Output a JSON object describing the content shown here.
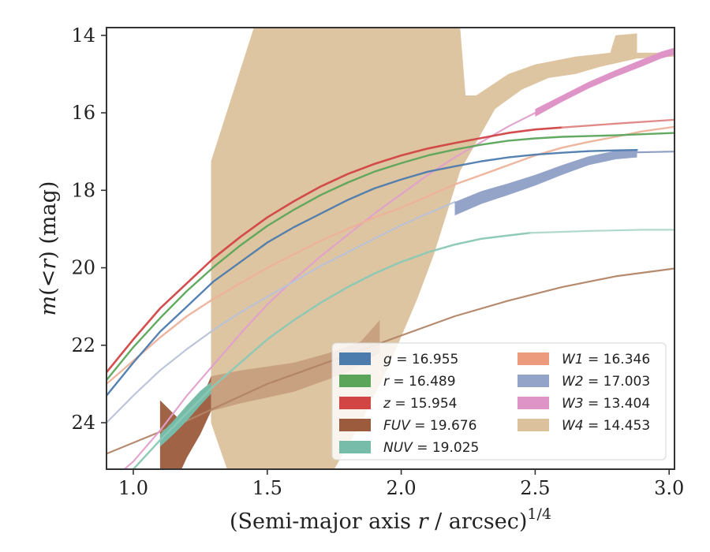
{
  "chart_data": {
    "type": "line",
    "title": "",
    "xlabel": "(Semi-major axis r / arcsec)^1/4",
    "xlabel_parts": {
      "prefix": "(Semi-major axis ",
      "var": "r",
      "suffix": " / arcsec)",
      "exponent": "1/4"
    },
    "ylabel": "m(< r) (mag)",
    "ylabel_parts": {
      "var": "m",
      "open": "(<",
      "var2": "r",
      "close": ") (mag)"
    },
    "xlim": [
      0.9,
      3.02
    ],
    "ylim": [
      25.2,
      13.8
    ],
    "y_inverted": true,
    "grid": false,
    "legend_placement": "lower-right",
    "xticks": [
      1.0,
      1.5,
      2.0,
      2.5,
      3.0
    ],
    "xtick_labels": [
      "1.0",
      "1.5",
      "2.0",
      "2.5",
      "3.0"
    ],
    "yticks": [
      14,
      16,
      18,
      20,
      22,
      24
    ],
    "ytick_labels": [
      "14",
      "16",
      "18",
      "20",
      "22",
      "24"
    ],
    "legend": [
      {
        "label": "g = 16.955",
        "var": "g",
        "value": "16.955",
        "color": "#4c7bae"
      },
      {
        "label": "r = 16.489",
        "var": "r",
        "value": "16.489",
        "color": "#5aa55a"
      },
      {
        "label": "z = 15.954",
        "var": "z",
        "value": "15.954",
        "color": "#d14545"
      },
      {
        "label": "FUV = 19.676",
        "var": "FUV",
        "value": "19.676",
        "color": "#9c5b3c"
      },
      {
        "label": "NUV = 19.025",
        "var": "NUV",
        "value": "19.025",
        "color": "#76bca9"
      },
      {
        "label": "W1 = 16.346",
        "var": "W1",
        "value": "16.346",
        "color": "#ec9c7c"
      },
      {
        "label": "W2 = 17.003",
        "var": "W2",
        "value": "17.003",
        "color": "#94a4c8"
      },
      {
        "label": "W3 = 13.404",
        "var": "W3",
        "value": "13.404",
        "color": "#df94c8"
      },
      {
        "label": "W4 = 14.453",
        "var": "W4",
        "value": "14.453",
        "color": "#dcc29c"
      }
    ],
    "series": [
      {
        "name": "W4",
        "kind": "band",
        "color": "#dcc29c",
        "opacity": 0.95,
        "upper": [
          [
            1.29,
            17.25
          ],
          [
            1.45,
            13.8
          ],
          [
            2.22,
            13.8
          ],
          [
            2.24,
            15.55
          ],
          [
            2.28,
            15.55
          ],
          [
            2.4,
            15.0
          ],
          [
            2.5,
            14.75
          ],
          [
            2.65,
            14.55
          ],
          [
            2.78,
            14.45
          ],
          [
            2.8,
            14.0
          ],
          [
            2.88,
            13.95
          ],
          [
            2.88,
            14.45
          ],
          [
            3.02,
            14.45
          ]
        ],
        "lower": [
          [
            3.02,
            14.55
          ],
          [
            2.88,
            14.6
          ],
          [
            2.75,
            14.8
          ],
          [
            2.65,
            15.0
          ],
          [
            2.55,
            15.1
          ],
          [
            2.45,
            15.4
          ],
          [
            2.35,
            15.9
          ],
          [
            2.22,
            17.5
          ],
          [
            2.12,
            19.7
          ],
          [
            2.06,
            20.8
          ],
          [
            1.95,
            22.6
          ],
          [
            1.85,
            24.0
          ],
          [
            1.75,
            25.2
          ],
          [
            1.35,
            25.2
          ],
          [
            1.3,
            24.2
          ],
          [
            1.29,
            24.0
          ]
        ]
      },
      {
        "name": "FUV",
        "kind": "band",
        "color": "#9c5b3c",
        "opacity": 0.95,
        "upper": [
          [
            1.1,
            23.42
          ],
          [
            1.17,
            23.9
          ],
          [
            1.22,
            23.6
          ],
          [
            1.26,
            23.3
          ],
          [
            1.29,
            22.8
          ],
          [
            1.29,
            23.7
          ]
        ],
        "lower": [
          [
            1.29,
            23.7
          ],
          [
            1.25,
            24.3
          ],
          [
            1.2,
            24.9
          ],
          [
            1.18,
            25.2
          ],
          [
            1.1,
            25.2
          ]
        ]
      },
      {
        "name": "FUV-extension",
        "kind": "band",
        "color": "#9c5b3c",
        "opacity": 0.32,
        "upper": [
          [
            1.29,
            22.8
          ],
          [
            1.4,
            22.65
          ],
          [
            1.6,
            22.45
          ],
          [
            1.73,
            22.2
          ],
          [
            1.85,
            21.9
          ],
          [
            1.92,
            21.35
          ],
          [
            1.92,
            22.2
          ]
        ],
        "lower": [
          [
            1.92,
            22.2
          ],
          [
            1.8,
            22.7
          ],
          [
            1.6,
            23.2
          ],
          [
            1.4,
            23.5
          ],
          [
            1.29,
            23.7
          ]
        ]
      },
      {
        "name": "FUV-line",
        "kind": "line",
        "color": "#b28466",
        "width": 2.2,
        "opacity": 0.95,
        "points": [
          [
            0.9,
            24.8
          ],
          [
            1.2,
            23.95
          ],
          [
            1.5,
            23.0
          ],
          [
            1.8,
            22.25
          ],
          [
            2.0,
            21.75
          ],
          [
            2.2,
            21.25
          ],
          [
            2.4,
            20.85
          ],
          [
            2.6,
            20.5
          ],
          [
            2.8,
            20.22
          ],
          [
            3.02,
            20.02
          ]
        ]
      },
      {
        "name": "W3-thin",
        "kind": "line",
        "color": "#e0a0cc",
        "width": 2.2,
        "opacity": 0.95,
        "points": [
          [
            0.9,
            25.6
          ],
          [
            1.0,
            25.0
          ],
          [
            1.1,
            24.2
          ],
          [
            1.2,
            23.3
          ],
          [
            1.3,
            22.5
          ],
          [
            1.4,
            21.7
          ],
          [
            1.5,
            20.95
          ],
          [
            1.6,
            20.3
          ],
          [
            1.7,
            19.7
          ],
          [
            1.8,
            19.15
          ],
          [
            1.9,
            18.6
          ],
          [
            2.0,
            18.1
          ],
          [
            2.1,
            17.6
          ],
          [
            2.2,
            17.15
          ],
          [
            2.3,
            16.75
          ],
          [
            2.4,
            16.35
          ],
          [
            2.5,
            16.0
          ]
        ]
      },
      {
        "name": "W3-band",
        "kind": "band",
        "color": "#df94c8",
        "opacity": 1.0,
        "upper": [
          [
            2.5,
            15.9
          ],
          [
            2.6,
            15.55
          ],
          [
            2.7,
            15.2
          ],
          [
            2.8,
            14.9
          ],
          [
            2.9,
            14.62
          ],
          [
            2.97,
            14.42
          ],
          [
            3.02,
            14.32
          ]
        ],
        "lower": [
          [
            3.02,
            14.5
          ],
          [
            2.97,
            14.6
          ],
          [
            2.9,
            14.8
          ],
          [
            2.8,
            15.07
          ],
          [
            2.7,
            15.37
          ],
          [
            2.6,
            15.72
          ],
          [
            2.5,
            16.1
          ]
        ]
      },
      {
        "name": "NUV",
        "kind": "band",
        "color": "#76bca9",
        "opacity": 1.0,
        "upper": [
          [
            1.1,
            24.3
          ],
          [
            1.15,
            23.95
          ],
          [
            1.2,
            23.55
          ],
          [
            1.25,
            23.18
          ],
          [
            1.29,
            22.95
          ]
        ],
        "lower": [
          [
            1.29,
            23.25
          ],
          [
            1.25,
            23.55
          ],
          [
            1.2,
            23.95
          ],
          [
            1.15,
            24.3
          ],
          [
            1.1,
            24.62
          ]
        ]
      },
      {
        "name": "NUV-line",
        "kind": "line",
        "color": "#8ac8b5",
        "width": 2.5,
        "opacity": 0.95,
        "points": [
          [
            0.9,
            25.9
          ],
          [
            1.0,
            25.2
          ],
          [
            1.1,
            24.45
          ],
          [
            1.2,
            23.75
          ],
          [
            1.3,
            23.05
          ],
          [
            1.4,
            22.45
          ],
          [
            1.5,
            21.85
          ],
          [
            1.6,
            21.35
          ],
          [
            1.7,
            20.9
          ],
          [
            1.8,
            20.5
          ],
          [
            1.9,
            20.15
          ],
          [
            2.0,
            19.85
          ],
          [
            2.1,
            19.6
          ],
          [
            2.2,
            19.4
          ],
          [
            2.3,
            19.25
          ],
          [
            2.48,
            19.1
          ]
        ]
      },
      {
        "name": "NUV-ext",
        "kind": "line",
        "color": "#a8d6c8",
        "width": 2.2,
        "opacity": 0.9,
        "points": [
          [
            2.48,
            19.1
          ],
          [
            2.7,
            19.05
          ],
          [
            2.9,
            19.02
          ],
          [
            3.02,
            19.02
          ]
        ]
      },
      {
        "name": "W2-thin",
        "kind": "line",
        "color": "#b8c2d8",
        "width": 2.2,
        "opacity": 0.95,
        "points": [
          [
            0.9,
            24.0
          ],
          [
            1.0,
            23.3
          ],
          [
            1.1,
            22.65
          ],
          [
            1.2,
            22.1
          ],
          [
            1.3,
            21.6
          ],
          [
            1.4,
            21.15
          ],
          [
            1.5,
            20.75
          ],
          [
            1.6,
            20.35
          ],
          [
            1.7,
            19.95
          ],
          [
            1.8,
            19.6
          ],
          [
            1.9,
            19.25
          ],
          [
            2.0,
            18.9
          ],
          [
            2.1,
            18.6
          ],
          [
            2.2,
            18.3
          ]
        ]
      },
      {
        "name": "W2-band",
        "kind": "band",
        "color": "#94a4c8",
        "opacity": 1.0,
        "upper": [
          [
            2.2,
            18.3
          ],
          [
            2.3,
            18.02
          ],
          [
            2.4,
            17.82
          ],
          [
            2.5,
            17.6
          ],
          [
            2.6,
            17.35
          ],
          [
            2.7,
            17.12
          ],
          [
            2.8,
            16.98
          ],
          [
            2.88,
            16.95
          ]
        ],
        "lower": [
          [
            2.88,
            17.15
          ],
          [
            2.8,
            17.2
          ],
          [
            2.7,
            17.35
          ],
          [
            2.6,
            17.6
          ],
          [
            2.5,
            17.88
          ],
          [
            2.4,
            18.12
          ],
          [
            2.3,
            18.35
          ],
          [
            2.2,
            18.65
          ]
        ]
      },
      {
        "name": "W2-ext",
        "kind": "line",
        "color": "#8898c0",
        "width": 2.2,
        "opacity": 0.95,
        "points": [
          [
            2.88,
            17.02
          ],
          [
            3.02,
            17.0
          ]
        ]
      },
      {
        "name": "W1",
        "kind": "line",
        "color": "#edb29a",
        "width": 2.4,
        "opacity": 0.95,
        "points": [
          [
            0.9,
            23.0
          ],
          [
            1.0,
            22.4
          ],
          [
            1.1,
            21.8
          ],
          [
            1.2,
            21.25
          ],
          [
            1.3,
            20.8
          ],
          [
            1.4,
            20.4
          ],
          [
            1.5,
            20.0
          ],
          [
            1.6,
            19.65
          ],
          [
            1.7,
            19.3
          ],
          [
            1.8,
            19.0
          ],
          [
            1.9,
            18.7
          ],
          [
            2.0,
            18.45
          ],
          [
            2.1,
            18.15
          ],
          [
            2.2,
            17.85
          ],
          [
            2.3,
            17.6
          ],
          [
            2.4,
            17.35
          ],
          [
            2.5,
            17.1
          ],
          [
            2.6,
            16.9
          ],
          [
            2.7,
            16.75
          ],
          [
            2.8,
            16.62
          ],
          [
            2.9,
            16.48
          ],
          [
            3.02,
            16.36
          ]
        ]
      },
      {
        "name": "g",
        "kind": "line",
        "color": "#4c7bae",
        "width": 2.4,
        "opacity": 0.95,
        "points": [
          [
            0.9,
            23.3
          ],
          [
            1.0,
            22.45
          ],
          [
            1.1,
            21.65
          ],
          [
            1.2,
            21.0
          ],
          [
            1.3,
            20.35
          ],
          [
            1.4,
            19.85
          ],
          [
            1.5,
            19.35
          ],
          [
            1.6,
            18.95
          ],
          [
            1.7,
            18.6
          ],
          [
            1.8,
            18.25
          ],
          [
            1.9,
            17.95
          ],
          [
            2.0,
            17.72
          ],
          [
            2.1,
            17.52
          ],
          [
            2.2,
            17.38
          ],
          [
            2.3,
            17.25
          ],
          [
            2.4,
            17.15
          ],
          [
            2.5,
            17.08
          ],
          [
            2.6,
            17.03
          ],
          [
            2.7,
            16.99
          ],
          [
            2.8,
            16.97
          ],
          [
            2.88,
            16.96
          ]
        ]
      },
      {
        "name": "r",
        "kind": "line",
        "color": "#5aa55a",
        "width": 2.4,
        "opacity": 0.95,
        "points": [
          [
            0.9,
            22.9
          ],
          [
            1.0,
            22.05
          ],
          [
            1.1,
            21.3
          ],
          [
            1.2,
            20.6
          ],
          [
            1.3,
            19.98
          ],
          [
            1.4,
            19.42
          ],
          [
            1.5,
            18.92
          ],
          [
            1.6,
            18.5
          ],
          [
            1.7,
            18.12
          ],
          [
            1.8,
            17.8
          ],
          [
            1.9,
            17.52
          ],
          [
            2.0,
            17.3
          ],
          [
            2.1,
            17.1
          ],
          [
            2.2,
            16.95
          ],
          [
            2.3,
            16.82
          ],
          [
            2.4,
            16.72
          ],
          [
            2.5,
            16.66
          ],
          [
            2.6,
            16.62
          ],
          [
            2.8,
            16.58
          ],
          [
            3.02,
            16.52
          ]
        ]
      },
      {
        "name": "z",
        "kind": "line",
        "color": "#d14545",
        "width": 2.6,
        "opacity": 0.95,
        "points": [
          [
            0.9,
            22.7
          ],
          [
            1.0,
            21.85
          ],
          [
            1.1,
            21.05
          ],
          [
            1.2,
            20.4
          ],
          [
            1.3,
            19.75
          ],
          [
            1.4,
            19.2
          ],
          [
            1.5,
            18.7
          ],
          [
            1.6,
            18.28
          ],
          [
            1.7,
            17.9
          ],
          [
            1.8,
            17.58
          ],
          [
            1.9,
            17.32
          ],
          [
            2.0,
            17.1
          ],
          [
            2.1,
            16.92
          ],
          [
            2.2,
            16.78
          ],
          [
            2.3,
            16.65
          ],
          [
            2.4,
            16.52
          ],
          [
            2.5,
            16.43
          ],
          [
            2.6,
            16.38
          ]
        ]
      },
      {
        "name": "z-ext",
        "kind": "line",
        "color": "#de8484",
        "width": 2.3,
        "opacity": 0.95,
        "points": [
          [
            2.6,
            16.38
          ],
          [
            2.8,
            16.28
          ],
          [
            3.02,
            16.18
          ]
        ]
      }
    ]
  }
}
